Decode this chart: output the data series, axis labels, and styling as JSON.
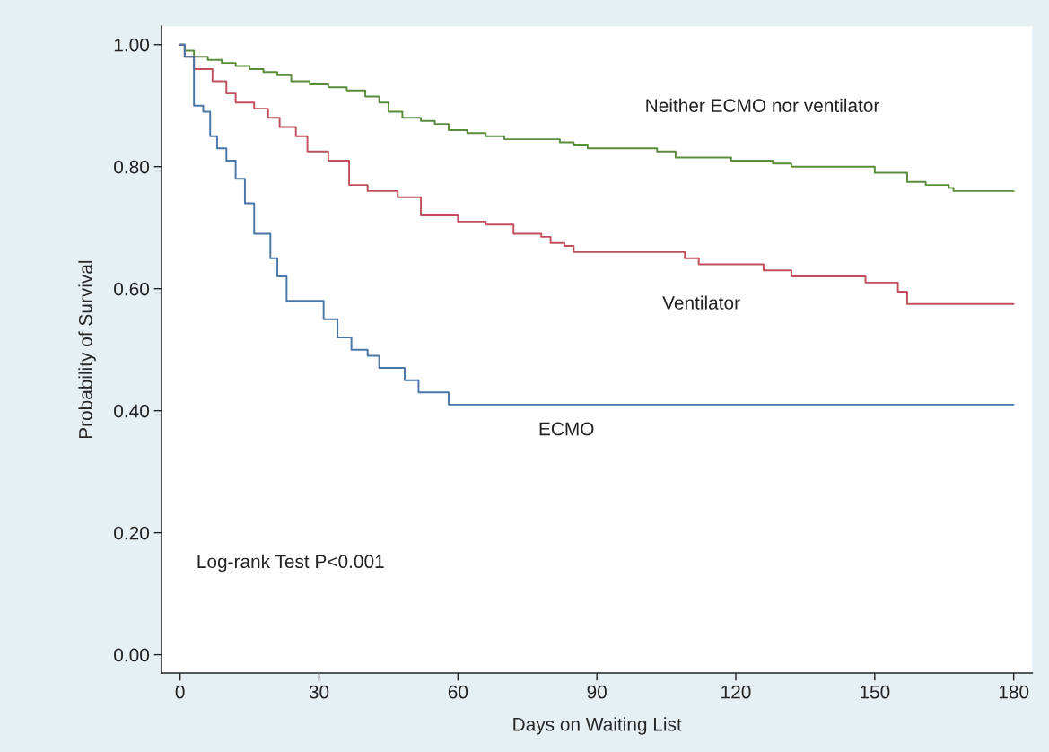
{
  "chart_data": {
    "type": "step",
    "xlabel": "Days on Waiting List",
    "ylabel": "Probability of Survival",
    "xlim": [
      -4,
      184
    ],
    "ylim": [
      -0.03,
      1.03
    ],
    "xticks": [
      0,
      30,
      60,
      90,
      120,
      150,
      180
    ],
    "yticks": [
      {
        "value": 0,
        "label": "0.00"
      },
      {
        "value": 0.2,
        "label": "0.20"
      },
      {
        "value": 0.4,
        "label": "0.40"
      },
      {
        "value": 0.6,
        "label": "0.60"
      },
      {
        "value": 0.8,
        "label": "0.80"
      },
      {
        "value": 1.0,
        "label": "1.00"
      }
    ],
    "grid": false,
    "legend": false,
    "series": [
      {
        "name": "Neither ECMO nor ventilator",
        "color": "#5b8c3c",
        "x": [
          0,
          1,
          3,
          6,
          9,
          12,
          15,
          18,
          21,
          24,
          28,
          32,
          36,
          40,
          43,
          45,
          48,
          52,
          55,
          58,
          62,
          66,
          70,
          82,
          85,
          88,
          103,
          107,
          119,
          128,
          132,
          150,
          157,
          161,
          166,
          167,
          180
        ],
        "values": [
          1.0,
          0.99,
          0.98,
          0.975,
          0.97,
          0.965,
          0.96,
          0.955,
          0.95,
          0.94,
          0.935,
          0.93,
          0.925,
          0.915,
          0.905,
          0.89,
          0.88,
          0.875,
          0.87,
          0.86,
          0.855,
          0.85,
          0.845,
          0.84,
          0.835,
          0.83,
          0.825,
          0.815,
          0.81,
          0.805,
          0.8,
          0.79,
          0.775,
          0.77,
          0.765,
          0.76,
          0.76
        ]
      },
      {
        "name": "Ventilator",
        "color": "#c0505e",
        "x": [
          0,
          1,
          3,
          7,
          10,
          12,
          16,
          19,
          21.5,
          25,
          27.5,
          32,
          36.5,
          40.5,
          47,
          52,
          60,
          66,
          72,
          78,
          80,
          83,
          85,
          109,
          112,
          126,
          132,
          148,
          155,
          157,
          180
        ],
        "values": [
          1.0,
          0.98,
          0.96,
          0.94,
          0.92,
          0.905,
          0.895,
          0.88,
          0.865,
          0.85,
          0.825,
          0.81,
          0.77,
          0.76,
          0.75,
          0.72,
          0.71,
          0.705,
          0.69,
          0.685,
          0.675,
          0.67,
          0.66,
          0.65,
          0.64,
          0.63,
          0.62,
          0.61,
          0.595,
          0.575,
          0.575
        ]
      },
      {
        "name": "ECMO",
        "color": "#4a76a8",
        "x": [
          0,
          1,
          3,
          5,
          6.5,
          8,
          10,
          12,
          14,
          16,
          19.5,
          21,
          23,
          29.5,
          31,
          34,
          37,
          40.5,
          43,
          48.5,
          51.5,
          58,
          180
        ],
        "values": [
          1.0,
          0.98,
          0.9,
          0.89,
          0.85,
          0.83,
          0.81,
          0.78,
          0.74,
          0.69,
          0.65,
          0.62,
          0.58,
          0.58,
          0.55,
          0.52,
          0.5,
          0.49,
          0.47,
          0.45,
          0.43,
          0.41,
          0.41
        ]
      }
    ],
    "annotations": [
      "Log-rank Test P<0.001"
    ]
  }
}
